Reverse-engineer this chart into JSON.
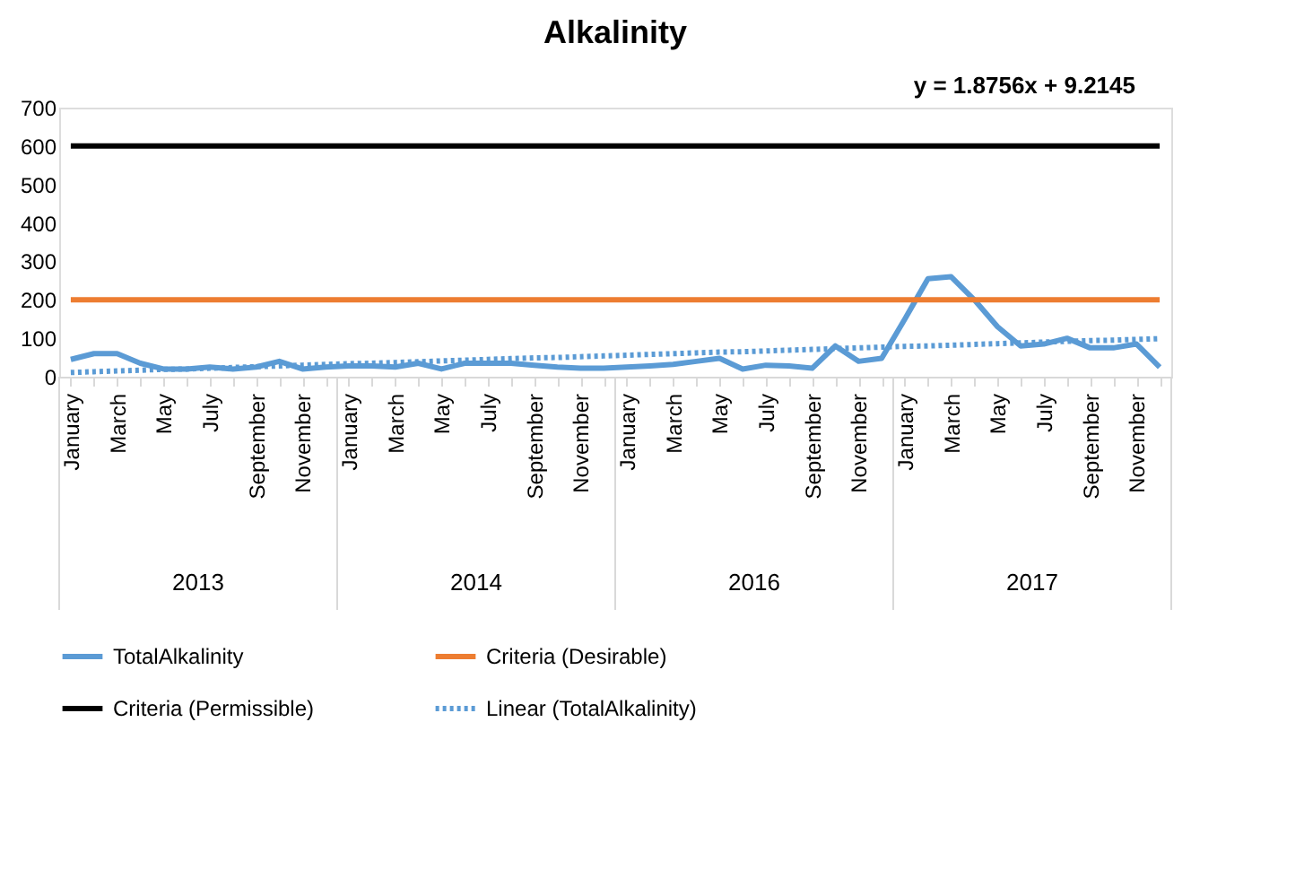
{
  "chart_data": {
    "type": "line",
    "title": "Alkalinity",
    "categories": [
      "January",
      null,
      "March",
      null,
      "May",
      null,
      "July",
      null,
      "September",
      null,
      "November",
      null,
      "January",
      null,
      "March",
      null,
      "May",
      null,
      "July",
      null,
      "September",
      null,
      "November",
      null,
      "January",
      null,
      "March",
      null,
      "May",
      null,
      "July",
      null,
      "September",
      null,
      "November",
      null,
      "January",
      null,
      "March",
      null,
      "May",
      null,
      "July",
      null,
      "September",
      null,
      "November",
      null
    ],
    "series": [
      {
        "name": "TotalAlkalinity",
        "color": "#5b9bd5",
        "line_style": "solid",
        "values": [
          45,
          60,
          60,
          35,
          20,
          20,
          25,
          20,
          25,
          40,
          20,
          25,
          28,
          28,
          25,
          35,
          20,
          35,
          35,
          35,
          30,
          25,
          22,
          22,
          25,
          28,
          32,
          40,
          48,
          20,
          30,
          28,
          22,
          80,
          40,
          48,
          150,
          255,
          260,
          200,
          130,
          80,
          85,
          100,
          75,
          75,
          85,
          25
        ]
      },
      {
        "name": "Criteria (Desirable)",
        "color": "#ed7d31",
        "line_style": "solid",
        "values": [
          200,
          200,
          200,
          200,
          200,
          200,
          200,
          200,
          200,
          200,
          200,
          200,
          200,
          200,
          200,
          200,
          200,
          200,
          200,
          200,
          200,
          200,
          200,
          200,
          200,
          200,
          200,
          200,
          200,
          200,
          200,
          200,
          200,
          200,
          200,
          200,
          200,
          200,
          200,
          200,
          200,
          200,
          200,
          200,
          200,
          200,
          200,
          200
        ]
      },
      {
        "name": "Criteria (Permissible)",
        "color": "#000000",
        "line_style": "solid",
        "values": [
          600,
          600,
          600,
          600,
          600,
          600,
          600,
          600,
          600,
          600,
          600,
          600,
          600,
          600,
          600,
          600,
          600,
          600,
          600,
          600,
          600,
          600,
          600,
          600,
          600,
          600,
          600,
          600,
          600,
          600,
          600,
          600,
          600,
          600,
          600,
          600,
          600,
          600,
          600,
          600,
          600,
          600,
          600,
          600,
          600,
          600,
          600,
          600
        ]
      },
      {
        "name": "Linear (TotalAlkalinity)",
        "color": "#5b9bd5",
        "line_style": "dotted",
        "values": [
          11,
          13,
          15,
          17,
          19,
          20,
          22,
          24,
          26,
          28,
          30,
          32,
          34,
          35,
          37,
          39,
          41,
          43,
          45,
          47,
          49,
          50,
          52,
          54,
          56,
          58,
          60,
          62,
          64,
          65,
          67,
          69,
          71,
          73,
          75,
          77,
          79,
          80,
          82,
          84,
          86,
          88,
          90,
          92,
          94,
          95,
          97,
          99
        ]
      }
    ],
    "ylim": [
      0,
      700
    ],
    "yticks": [
      0,
      100,
      200,
      300,
      400,
      500,
      600,
      700
    ],
    "grid": false,
    "legend": "bottom",
    "marker": "none",
    "annotations": [
      "y = 1.8756x + 9.2145",
      "2013",
      "2014",
      "2016",
      "2017"
    ]
  }
}
